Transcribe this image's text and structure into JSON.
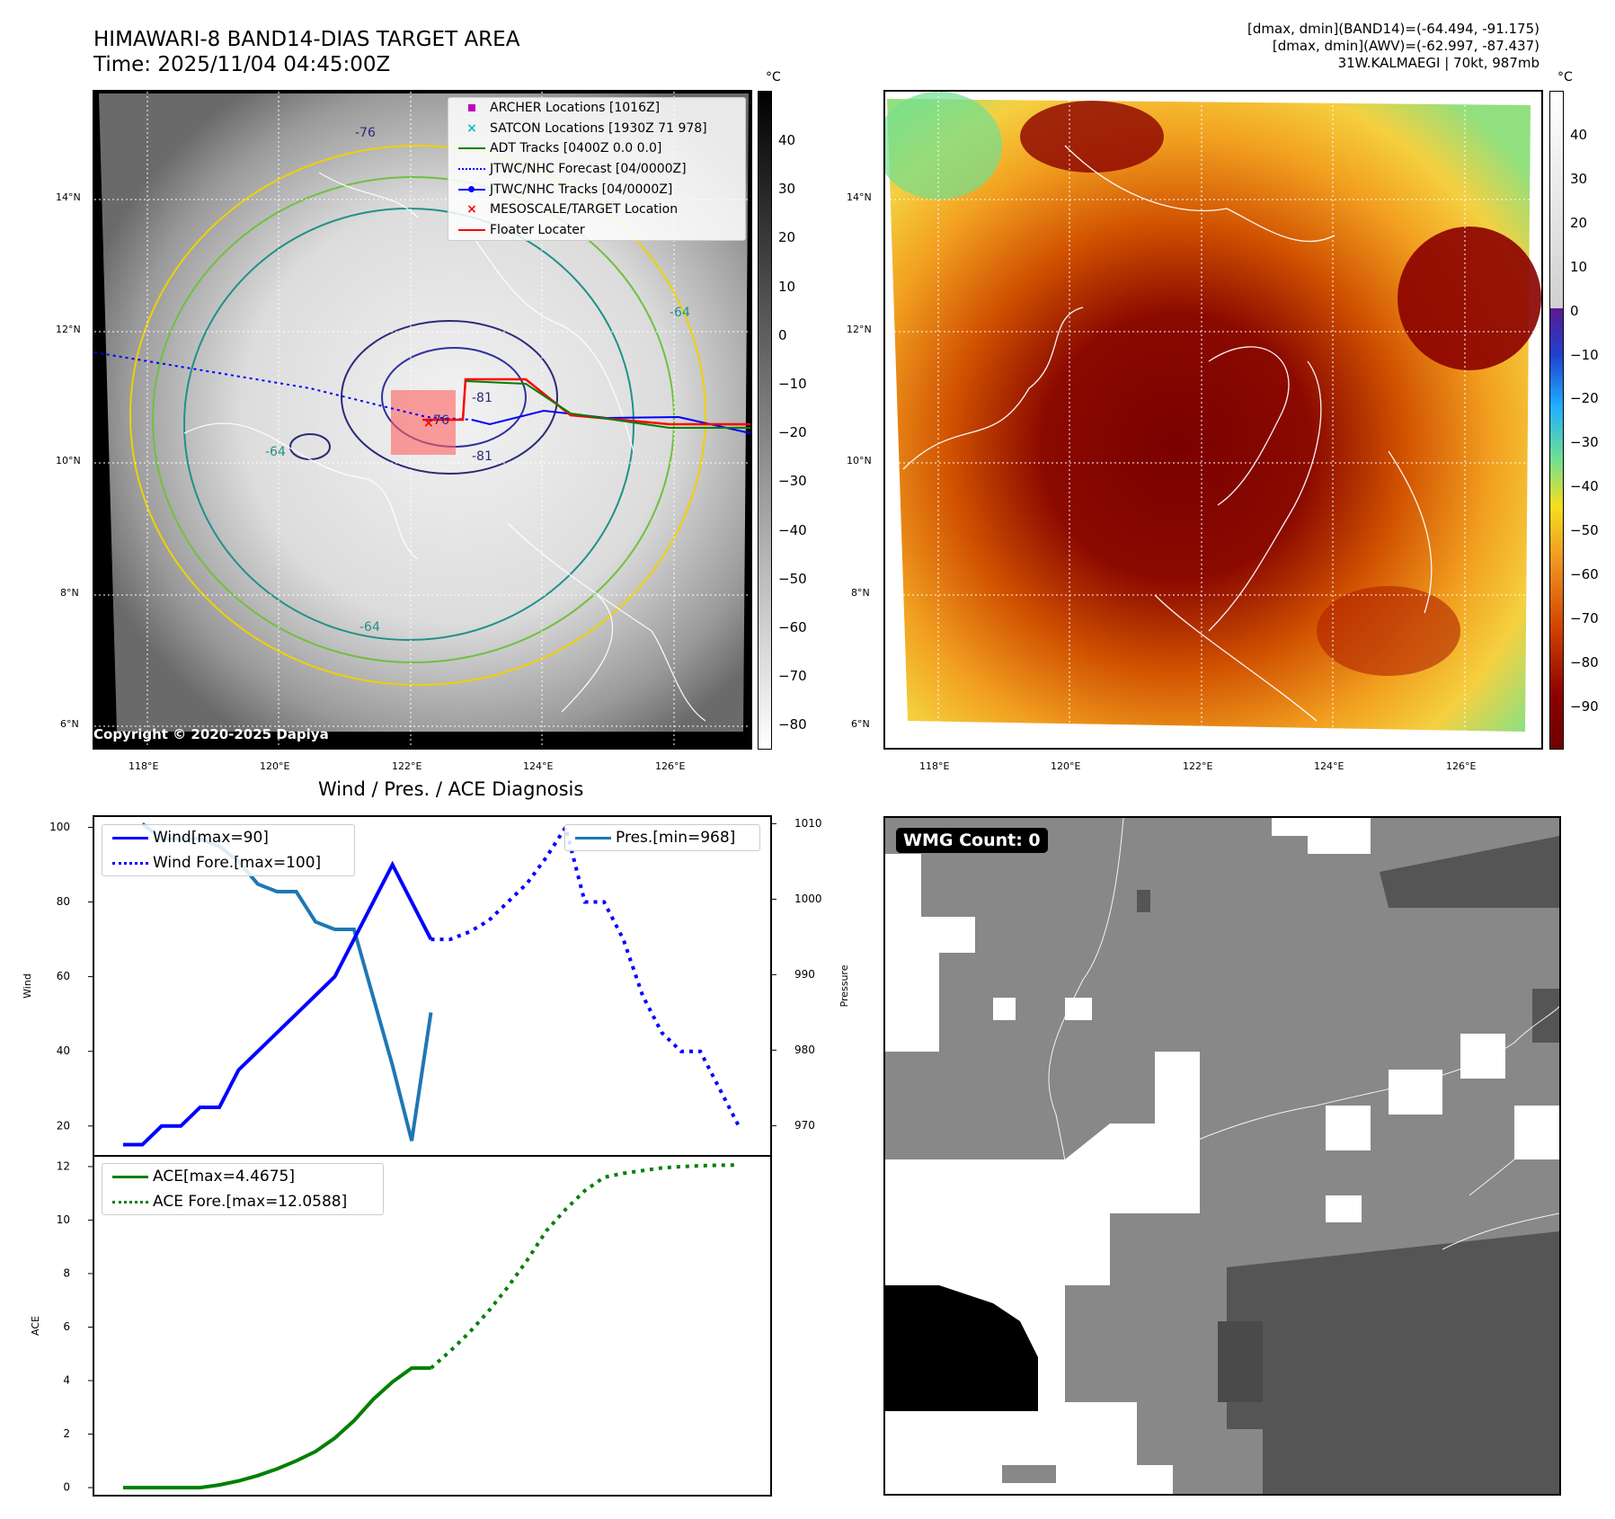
{
  "header": {
    "title_line1": "HIMAWARI-8 BAND14-DIAS TARGET AREA",
    "title_line2": "Time: 2025/11/04 04:45:00Z",
    "info_line1": "[dmax, dmin](BAND14)=(-64.494, -91.175)",
    "info_line2": "[dmax, dmin](AWV)=(-62.997, -87.437)",
    "info_line3": "31W.KALMAEGI | 70kt, 987mb"
  },
  "map": {
    "lat_labels": [
      "14°N",
      "12°N",
      "10°N",
      "8°N",
      "6°N"
    ],
    "lon_labels": [
      "118°E",
      "120°E",
      "122°E",
      "124°E",
      "126°E"
    ],
    "copyright": "Copyright © 2020-2025 Dapiya",
    "contour_labels": [
      "-76",
      "-64",
      "-81",
      "-76",
      "-64",
      "-81",
      "-64"
    ],
    "legend": [
      {
        "label": "ARCHER Locations [1016Z]",
        "color": "#bf00bf",
        "symbol": "square"
      },
      {
        "label": "SATCON Locations [1930Z 71 978]",
        "color": "#00bfbf",
        "symbol": "x"
      },
      {
        "label": "ADT Tracks [0400Z 0.0 0.0]",
        "color": "#008000",
        "symbol": "line"
      },
      {
        "label": "JTWC/NHC Forecast [04/0000Z]",
        "color": "#0000ff",
        "symbol": "dotted"
      },
      {
        "label": "JTWC/NHC Tracks [04/0000Z]",
        "color": "#0000ff",
        "symbol": "line-dot"
      },
      {
        "label": "MESOSCALE/TARGET Location",
        "color": "#ff0000",
        "symbol": "x"
      },
      {
        "label": "Floater Locater",
        "color": "#ff0000",
        "symbol": "line"
      }
    ]
  },
  "colorbar_left": {
    "unit": "°C",
    "ticks": [
      "40",
      "30",
      "20",
      "10",
      "0",
      "−10",
      "−20",
      "−30",
      "−40",
      "−50",
      "−60",
      "−70",
      "−80"
    ]
  },
  "colorbar_right": {
    "unit": "°C",
    "ticks": [
      "40",
      "30",
      "20",
      "10",
      "0",
      "−10",
      "−20",
      "−30",
      "−40",
      "−50",
      "−60",
      "−70",
      "−80",
      "−90"
    ]
  },
  "diagnosis": {
    "title": "Wind / Pres. / ACE Diagnosis",
    "wind_ylabel": "Wind",
    "pres_ylabel": "Pressure",
    "ace_ylabel": "ACE",
    "legend_wind": "Wind[max=90]",
    "legend_wind_fore": "Wind Fore.[max=100]",
    "legend_pres": "Pres.[min=968]",
    "legend_ace": "ACE[max=4.4675]",
    "legend_ace_fore": "ACE Fore.[max=12.0588]",
    "wind_ticks": [
      "100",
      "80",
      "60",
      "40",
      "20"
    ],
    "pres_ticks": [
      "1010",
      "1000",
      "990",
      "980",
      "970"
    ],
    "ace_ticks": [
      "12",
      "10",
      "8",
      "6",
      "4",
      "2",
      "0"
    ]
  },
  "wmg": {
    "label": "WMG Count: 0"
  },
  "chart_data": [
    {
      "type": "line",
      "name": "wind-pressure",
      "x": [
        0,
        1,
        2,
        3,
        4,
        5,
        6,
        7,
        8,
        9,
        10,
        11,
        12,
        13,
        14,
        15,
        16
      ],
      "series": [
        {
          "name": "Wind[max=90]",
          "axis": "left",
          "style": "solid",
          "color": "#0000ff",
          "x": [
            0,
            1,
            2,
            3,
            4,
            5,
            6,
            7,
            8,
            9,
            10,
            11,
            12,
            13,
            14,
            15,
            16
          ],
          "values": [
            15,
            15,
            20,
            20,
            25,
            25,
            35,
            40,
            45,
            50,
            55,
            60,
            70,
            80,
            90,
            80,
            70
          ]
        },
        {
          "name": "Wind Fore.[max=100]",
          "axis": "left",
          "style": "dotted",
          "color": "#0000ff",
          "x": [
            16,
            17,
            18,
            19,
            20,
            21,
            22,
            23,
            24,
            25,
            26,
            27,
            28,
            29,
            30,
            31,
            32
          ],
          "values": [
            70,
            70,
            72,
            75,
            80,
            85,
            92,
            100,
            80,
            80,
            70,
            55,
            45,
            40,
            40,
            30,
            20
          ]
        },
        {
          "name": "Pres.[min=968]",
          "axis": "right",
          "style": "solid",
          "color": "#1f77b4",
          "x": [
            1,
            2,
            3,
            4,
            5,
            6,
            7,
            8,
            9,
            10,
            11,
            12,
            13,
            14,
            15,
            16
          ],
          "values": [
            1010,
            1008,
            1008,
            1008,
            1007,
            1005,
            1002,
            1001,
            1001,
            997,
            996,
            996,
            987,
            978,
            968,
            985
          ]
        }
      ],
      "wind_ylim": [
        12,
        103
      ],
      "pres_ylim": [
        966,
        1011
      ],
      "legend": "top-left / top-right"
    },
    {
      "type": "line",
      "name": "ace",
      "series": [
        {
          "name": "ACE[max=4.4675]",
          "style": "solid",
          "color": "#008000",
          "x": [
            0,
            1,
            2,
            3,
            4,
            5,
            6,
            7,
            8,
            9,
            10,
            11,
            12,
            13,
            14,
            15,
            16
          ],
          "values": [
            0,
            0,
            0,
            0,
            0,
            0.1,
            0.25,
            0.45,
            0.7,
            1.0,
            1.35,
            1.85,
            2.5,
            3.3,
            3.95,
            4.4675,
            4.4675
          ]
        },
        {
          "name": "ACE Fore.[max=12.0588]",
          "style": "dotted",
          "color": "#008000",
          "x": [
            16,
            17,
            18,
            19,
            20,
            21,
            22,
            23,
            24,
            25,
            26,
            27,
            28,
            29,
            30,
            31,
            32
          ],
          "values": [
            4.4675,
            5.1,
            5.8,
            6.6,
            7.5,
            8.5,
            9.6,
            10.4,
            11.1,
            11.6,
            11.75,
            11.85,
            11.95,
            12.0,
            12.03,
            12.05,
            12.0588
          ]
        }
      ],
      "ylim": [
        -0.3,
        12.4
      ],
      "legend": "top-left"
    }
  ]
}
